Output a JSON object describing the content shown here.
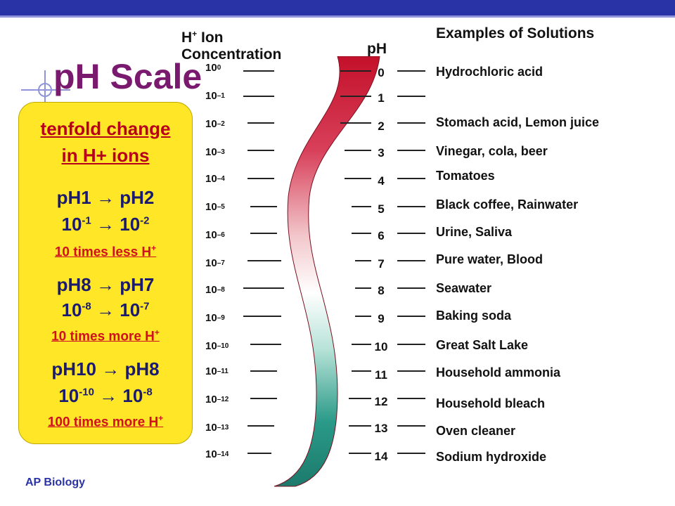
{
  "slide": {
    "title": "pH Scale",
    "footer": "AP Biology",
    "accent_color": "#2a33a6",
    "title_color": "#7a1a6e"
  },
  "headers": {
    "ion_line1": "H",
    "ion_sup": "+",
    "ion_line1_rest": " Ion",
    "ion_line2": "Concentration",
    "ph": "pH",
    "examples": "Examples of Solutions"
  },
  "scale": {
    "exponent_base": "10",
    "exponents": [
      "0",
      "–1",
      "–2",
      "–3",
      "–4",
      "–5",
      "–6",
      "–7",
      "–8",
      "–9",
      "–10",
      "–11",
      "–12",
      "–13",
      "–14"
    ],
    "ph_values": [
      "0",
      "1",
      "2",
      "3",
      "4",
      "5",
      "6",
      "7",
      "8",
      "9",
      "10",
      "11",
      "12",
      "13",
      "14"
    ],
    "examples": [
      "Hydrochloric acid",
      "",
      "Stomach acid, Lemon juice",
      "Vinegar, cola, beer",
      "Tomatoes",
      "Black coffee, Rainwater",
      "Urine, Saliva",
      "Pure water, Blood",
      "Seawater",
      "Baking soda",
      "Great Salt Lake",
      "Household ammonia",
      "Household bleach",
      "Oven cleaner",
      "Sodium hydroxide"
    ]
  },
  "callout": {
    "lead1": "tenfold change",
    "lead2": "in H+ ions",
    "arrow": "→",
    "blocks": [
      {
        "from_ph": "pH1",
        "to_ph": "pH2",
        "base": "10",
        "from_exp": "-1",
        "to_exp": "-2",
        "note": "10 times less H",
        "note_sup": "+"
      },
      {
        "from_ph": "pH8",
        "to_ph": "pH7",
        "base": "10",
        "from_exp": "-8",
        "to_exp": "-7",
        "note": "10 times more H",
        "note_sup": "+"
      },
      {
        "from_ph": "pH10",
        "to_ph": "pH8",
        "base": "10",
        "from_exp": "-10",
        "to_exp": "-8",
        "note": "100 times more H",
        "note_sup": "+"
      }
    ]
  }
}
